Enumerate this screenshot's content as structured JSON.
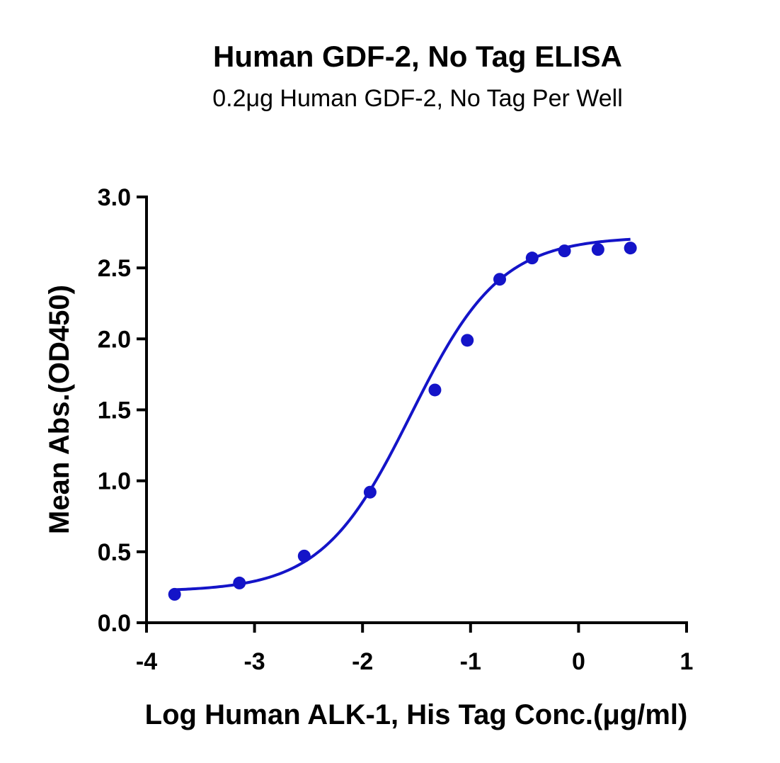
{
  "chart_data": {
    "type": "scatter",
    "title": "Human GDF-2, No Tag ELISA",
    "subtitle": "0.2μg Human GDF-2, No Tag Per Well",
    "xlabel": "Log Human ALK-1, His Tag Conc.(μg/ml)",
    "ylabel": "Mean Abs.(OD450)",
    "xlim": [
      -4,
      1
    ],
    "ylim": [
      0,
      3.0
    ],
    "x_ticks": [
      "-4",
      "-3",
      "-2",
      "-1",
      "0",
      "1"
    ],
    "y_ticks": [
      "0.0",
      "0.5",
      "1.0",
      "1.5",
      "2.0",
      "2.5",
      "3.0"
    ],
    "series": [
      {
        "x": [
          -3.74,
          -3.14,
          -2.54,
          -1.93,
          -1.33,
          -1.03,
          -0.73,
          -0.43,
          -0.13,
          0.18,
          0.48
        ],
        "y": [
          0.2,
          0.28,
          0.47,
          0.92,
          1.64,
          1.99,
          2.42,
          2.57,
          2.62,
          2.63,
          2.64
        ],
        "color": "#1414c8"
      }
    ],
    "fit_curve": {
      "model": "4PL",
      "bottom": 0.22,
      "top": 2.72,
      "log_ec50": -1.55,
      "hill_slope": 1.05,
      "x_range": [
        -3.74,
        0.48
      ],
      "color": "#1414c8"
    },
    "grid": false
  }
}
